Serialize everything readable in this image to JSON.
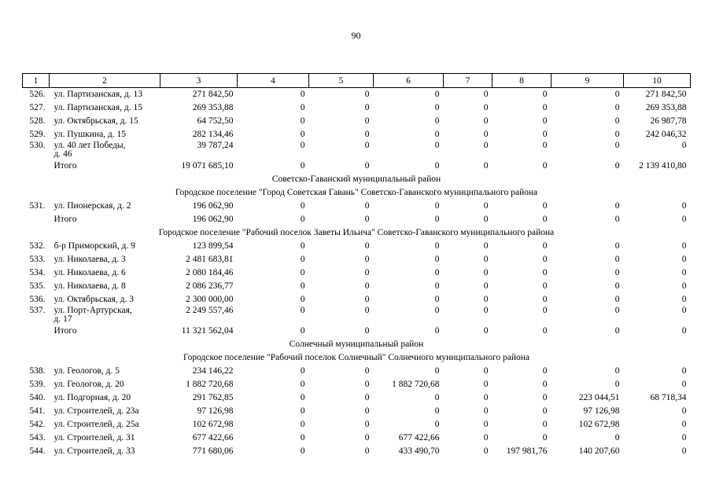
{
  "page_number": "90",
  "table": {
    "header": [
      "1",
      "2",
      "3",
      "4",
      "5",
      "6",
      "7",
      "8",
      "9",
      "10"
    ],
    "rows": [
      {
        "cells": [
          "526.",
          "ул. Партизанская, д. 13",
          "271 842,50",
          "0",
          "0",
          "0",
          "0",
          "0",
          "0",
          "271 842,50"
        ]
      },
      {
        "cells": [
          "527.",
          "ул. Партизанская, д. 15",
          "269 353,88",
          "0",
          "0",
          "0",
          "0",
          "0",
          "0",
          "269 353,88"
        ]
      },
      {
        "cells": [
          "528.",
          "ул. Октябрьская, д. 15",
          "64 752,50",
          "0",
          "0",
          "0",
          "0",
          "0",
          "0",
          "26 987,78"
        ]
      },
      {
        "cells": [
          "529.",
          "ул. Пушкина, д. 15",
          "282 134,46",
          "0",
          "0",
          "0",
          "0",
          "0",
          "0",
          "242 046,32"
        ]
      },
      {
        "cells": [
          "530.",
          "ул. 40 лет Победы,\nд. 46",
          "39 787,24",
          "0",
          "0",
          "0",
          "0",
          "0",
          "0",
          "0"
        ]
      },
      {
        "cells": [
          "",
          "Итого",
          "19 071 685,10",
          "0",
          "0",
          "0",
          "0",
          "0",
          "0",
          "2 139 410,80"
        ]
      },
      {
        "heading": "Советско-Гаванский муниципальный район"
      },
      {
        "heading": "Городское поселение \"Город Советская Гавань\" Советско-Гаванского муниципального района"
      },
      {
        "cells": [
          "531.",
          "ул. Пионерская, д. 2",
          "196 062,90",
          "0",
          "0",
          "0",
          "0",
          "0",
          "0",
          "0"
        ]
      },
      {
        "cells": [
          "",
          "Итого",
          "196 062,90",
          "0",
          "0",
          "0",
          "0",
          "0",
          "0",
          "0"
        ]
      },
      {
        "heading": "Городское поселение \"Рабочий поселок Заветы Ильича\" Советско-Гаванского муниципального района"
      },
      {
        "cells": [
          "532.",
          "б-р Приморский, д. 9",
          "123 899,54",
          "0",
          "0",
          "0",
          "0",
          "0",
          "0",
          "0"
        ]
      },
      {
        "cells": [
          "533.",
          "ул. Николаева, д. 3",
          "2 481 683,81",
          "0",
          "0",
          "0",
          "0",
          "0",
          "0",
          "0"
        ]
      },
      {
        "cells": [
          "534.",
          "ул. Николаева, д. 6",
          "2 080 184,46",
          "0",
          "0",
          "0",
          "0",
          "0",
          "0",
          "0"
        ]
      },
      {
        "cells": [
          "535.",
          "ул. Николаева, д. 8",
          "2 086 236,77",
          "0",
          "0",
          "0",
          "0",
          "0",
          "0",
          "0"
        ]
      },
      {
        "cells": [
          "536.",
          "ул. Октябрьская, д. 3",
          "2 300 000,00",
          "0",
          "0",
          "0",
          "0",
          "0",
          "0",
          "0"
        ]
      },
      {
        "cells": [
          "537.",
          "ул. Порт-Артурская,\nд. 17",
          "2 249 557,46",
          "0",
          "0",
          "0",
          "0",
          "0",
          "0",
          "0"
        ]
      },
      {
        "cells": [
          "",
          "Итого",
          "11 321 562,04",
          "0",
          "0",
          "0",
          "0",
          "0",
          "0",
          "0"
        ]
      },
      {
        "heading": "Солнечный муниципальный район"
      },
      {
        "heading": "Городское поселение \"Рабочий поселок Солнечный\" Солнечного муниципального района"
      },
      {
        "cells": [
          "538.",
          "ул. Геологов, д. 5",
          "234 146,22",
          "0",
          "0",
          "0",
          "0",
          "0",
          "0",
          "0"
        ]
      },
      {
        "cells": [
          "539.",
          "ул. Геологов, д. 20",
          "1 882 720,68",
          "0",
          "0",
          "1 882 720,68",
          "0",
          "0",
          "0",
          "0"
        ]
      },
      {
        "cells": [
          "540.",
          "ул. Подгорная, д. 20",
          "291 762,85",
          "0",
          "0",
          "0",
          "0",
          "0",
          "223 044,51",
          "68 718,34"
        ]
      },
      {
        "cells": [
          "541.",
          "ул. Строителей, д. 23а",
          "97 126,98",
          "0",
          "0",
          "0",
          "0",
          "0",
          "97 126,98",
          "0"
        ]
      },
      {
        "cells": [
          "542.",
          "ул. Строителей, д. 25а",
          "102 672,98",
          "0",
          "0",
          "0",
          "0",
          "0",
          "102 672,98",
          "0"
        ]
      },
      {
        "cells": [
          "543.",
          "ул. Строителей, д. 31",
          "677 422,66",
          "0",
          "0",
          "677 422,66",
          "0",
          "0",
          "0",
          "0"
        ]
      },
      {
        "cells": [
          "544.",
          "ул. Строителей, д. 33",
          "771 680,06",
          "0",
          "0",
          "433 490,70",
          "0",
          "197 981,76",
          "140 207,60",
          "0"
        ]
      }
    ]
  }
}
